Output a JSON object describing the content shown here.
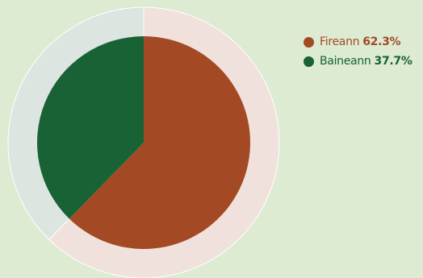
{
  "chart_data": {
    "type": "pie",
    "categories": [
      "Fireann",
      "Baineann"
    ],
    "values": [
      62.3,
      37.7
    ],
    "percent_labels": [
      "62.3%",
      "37.7%"
    ],
    "colors": [
      "#a34a24",
      "#186236"
    ],
    "ring_colors": [
      "#f1e1dd",
      "#dce5e0"
    ],
    "legend_position": "top-right",
    "start": "12 o'clock",
    "direction": "clockwise"
  },
  "legend": {
    "items": [
      {
        "label": "Fireann",
        "pct": "62.3%",
        "color": "#a34a24"
      },
      {
        "label": "Baineann",
        "pct": "37.7%",
        "color": "#186236"
      }
    ]
  }
}
